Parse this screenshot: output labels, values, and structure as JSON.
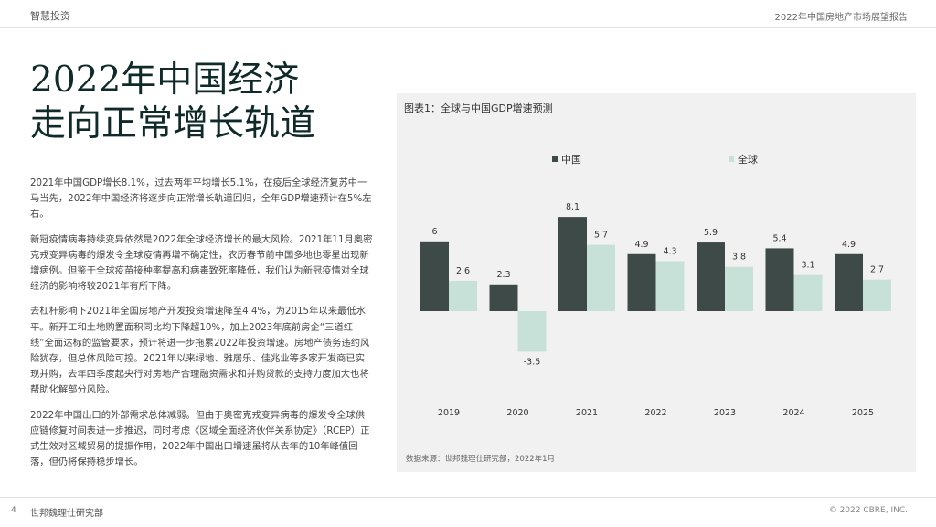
{
  "header": {
    "left": "智慧投资",
    "right": "2022年中国房地产市场展望报告"
  },
  "title": {
    "line1": "2022年中国经济",
    "line2": "走向正常增长轨道"
  },
  "paragraphs": [
    "2021年中国GDP增长8.1%，过去两年平均增长5.1%，在疫后全球经济复苏中一马当先，2022年中国经济将逐步向正常增长轨道回归，全年GDP增速预计在5%左右。",
    "新冠疫情病毒持续变异依然是2022年全球经济增长的最大风险。2021年11月奥密克戎变异病毒的爆发令全球疫情再增不确定性，农历春节前中国多地也零星出现新增病例。但鉴于全球疫苗接种率提高和病毒致死率降低，我们认为新冠疫情对全球经济的影响将较2021年有所下降。",
    "去杠杆影响下2021年全国房地产开发投资增速降至4.4%，为2015年以来最低水平。新开工和土地购置面积同比均下降超10%，加上2023年底前房企“三道红线”全面达标的监管要求，预计将进一步拖累2022年投资增速。房地产债务违约风险犹存，但总体风险可控。2021年以来绿地、雅居乐、佳兆业等多家开发商已实现并购，去年四季度起央行对房地产合理融资需求和并购贷款的支持力度加大也将帮助化解部分风险。",
    "2022年中国出口的外部需求总体减弱。但由于奥密克戎变异病毒的爆发令全球供应链修复时间表进一步推迟，同时考虑《区域全面经济伙伴关系协定》（RCEP）正式生效对区域贸易的提振作用，2022年中国出口增速虽将从去年的10年峰值回落，但仍将保持稳步增长。"
  ],
  "chart": {
    "title": "图表1：全球与中国GDP增速预测",
    "source": "数据来源：世邦魏理仕研究部，2022年1月"
  },
  "chart_data": {
    "type": "bar",
    "categories": [
      "2019",
      "2020",
      "2021",
      "2022",
      "2023",
      "2024",
      "2025"
    ],
    "series": [
      {
        "name": "中国",
        "values": [
          6,
          2.3,
          8.1,
          4.9,
          5.9,
          5.4,
          4.9
        ],
        "labels": [
          "6",
          "2.3",
          "8.1",
          "4.9",
          "5.9",
          "5.4",
          "4.9"
        ],
        "color": "#3d4a48"
      },
      {
        "name": "全球",
        "values": [
          2.6,
          -3.5,
          5.7,
          4.3,
          3.8,
          3.1,
          2.7
        ],
        "labels": [
          "2.6",
          "-3.5",
          "5.7",
          "4.3",
          "3.8",
          "3.1",
          "2.7"
        ],
        "color": "#c8e1d8"
      }
    ],
    "legend_position": "top-left",
    "grid": false
  },
  "footer": {
    "page": "4",
    "org": "世邦魏理仕研究部",
    "copyright": "© 2022 CBRE, INC."
  }
}
